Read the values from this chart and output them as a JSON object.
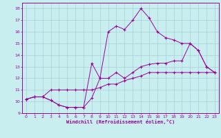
{
  "bg_color": "#c8eef0",
  "line_color": "#990099",
  "xlabel": "Windchill (Refroidissement éolien,°C)",
  "xlim_min": -0.5,
  "xlim_max": 23.5,
  "ylim_min": 9,
  "ylim_max": 18.5,
  "xticks": [
    0,
    1,
    2,
    3,
    4,
    5,
    6,
    7,
    8,
    9,
    10,
    11,
    12,
    13,
    14,
    15,
    16,
    17,
    18,
    19,
    20,
    21,
    22,
    23
  ],
  "yticks": [
    9,
    10,
    11,
    12,
    13,
    14,
    15,
    16,
    17,
    18
  ],
  "line1_x": [
    0,
    1,
    2,
    3,
    4,
    5,
    6,
    7,
    8,
    9,
    10,
    11,
    12,
    13,
    14,
    15,
    16,
    17,
    18,
    19,
    20,
    21,
    22,
    23
  ],
  "line1_y": [
    10.2,
    10.4,
    10.4,
    10.1,
    9.7,
    9.5,
    9.5,
    9.5,
    10.3,
    12.0,
    16.0,
    16.5,
    16.2,
    17.0,
    18.0,
    17.2,
    16.0,
    15.5,
    15.3,
    15.0,
    15.0,
    14.4,
    13.0,
    12.5
  ],
  "line2_x": [
    0,
    1,
    2,
    3,
    4,
    5,
    6,
    7,
    8,
    9,
    10,
    11,
    12,
    13,
    14,
    15,
    16,
    17,
    18,
    19,
    20,
    21,
    22,
    23
  ],
  "line2_y": [
    10.2,
    10.4,
    10.4,
    10.1,
    9.7,
    9.5,
    9.5,
    9.5,
    13.3,
    12.0,
    12.0,
    12.5,
    12.0,
    12.5,
    13.0,
    13.2,
    13.3,
    13.3,
    13.5,
    13.5,
    15.0,
    14.4,
    13.0,
    12.5
  ],
  "line3_x": [
    0,
    1,
    2,
    3,
    4,
    5,
    6,
    7,
    8,
    9,
    10,
    11,
    12,
    13,
    14,
    15,
    16,
    17,
    18,
    19,
    20,
    21,
    22,
    23
  ],
  "line3_y": [
    10.2,
    10.4,
    10.4,
    11.0,
    11.0,
    11.0,
    11.0,
    11.0,
    11.0,
    11.2,
    11.5,
    11.5,
    11.8,
    12.0,
    12.2,
    12.5,
    12.5,
    12.5,
    12.5,
    12.5,
    12.5,
    12.5,
    12.5,
    12.5
  ]
}
